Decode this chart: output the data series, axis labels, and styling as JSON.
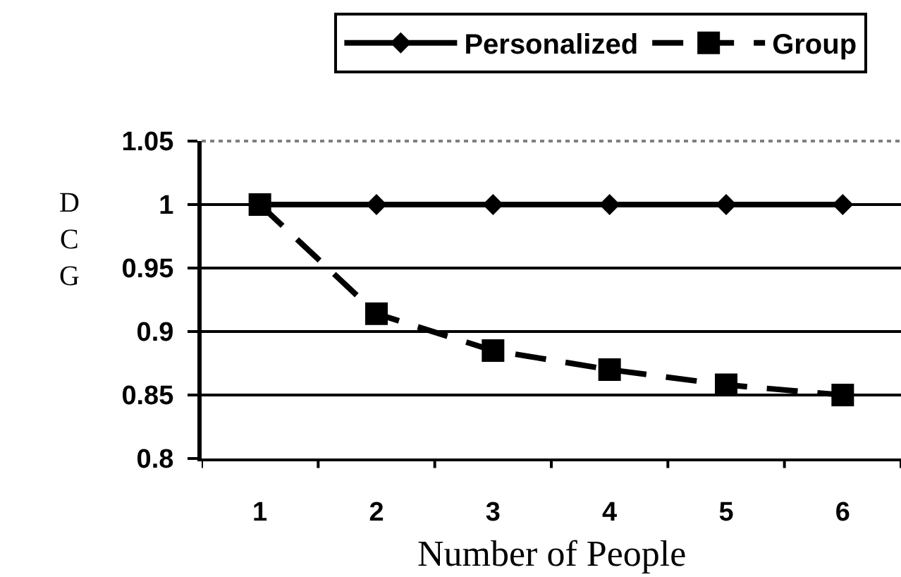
{
  "chart_data": {
    "type": "line",
    "categories": [
      "1",
      "2",
      "3",
      "4",
      "5",
      "6"
    ],
    "series": [
      {
        "name": "Group",
        "color": "#000000",
        "values": [
          1,
          0.914,
          0.885,
          0.87,
          0.858,
          0.85
        ],
        "marker": "square",
        "line_style": "dashed"
      },
      {
        "name": "Personalized",
        "color": "#000000",
        "values": [
          1,
          1,
          1,
          1,
          1,
          1
        ],
        "marker": "diamond",
        "line_style": "solid"
      }
    ],
    "xlabel": "Number of People",
    "ylabel": "DCG",
    "ylim": [
      0.8,
      1.05
    ],
    "yticks": [
      0.8,
      0.85,
      0.9,
      0.95,
      1,
      1.05
    ],
    "grid": "y",
    "legend": "top right"
  }
}
